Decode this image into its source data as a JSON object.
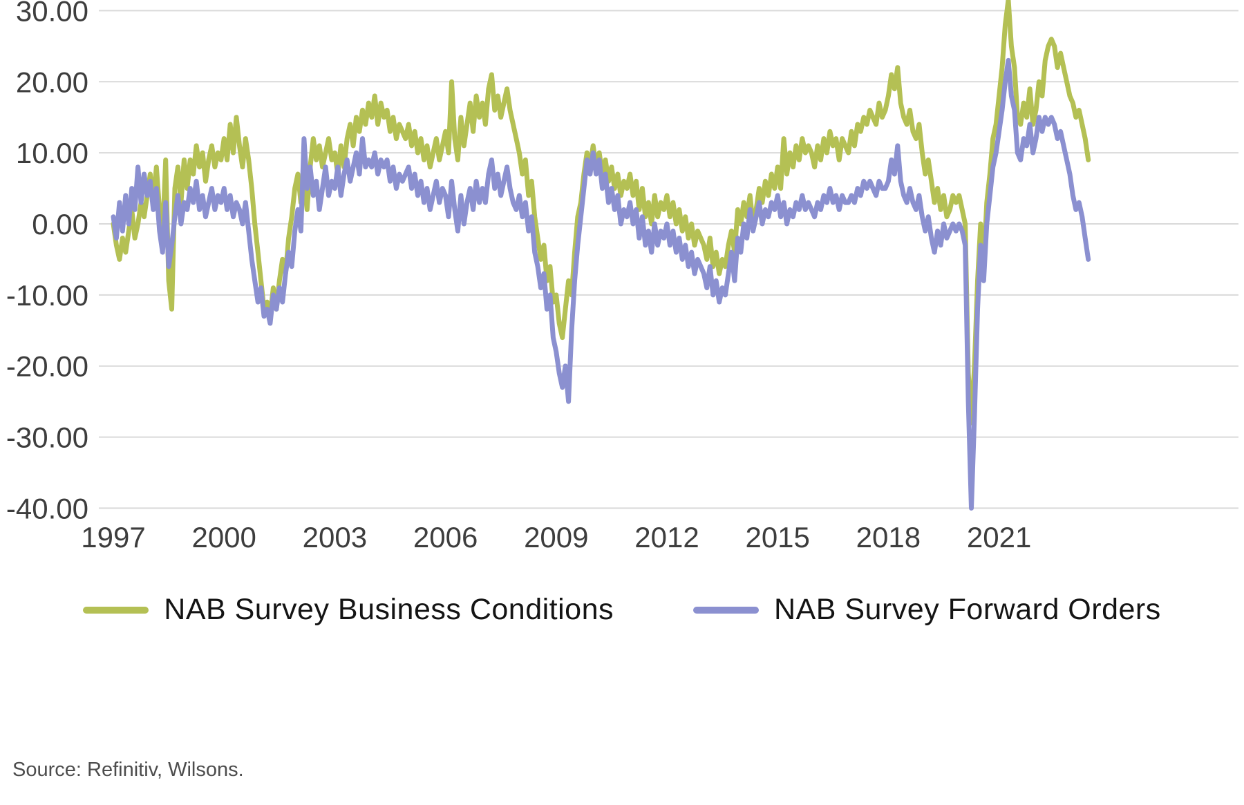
{
  "source_note": "Source: Refinitiv, Wilsons.",
  "colors": {
    "background": "#ffffff",
    "gridline": "#d9d9d9",
    "axis_text": "#3d3d3d",
    "business_conditions": "#b4c054",
    "forward_orders": "#8b90d0"
  },
  "chart_data": {
    "type": "line",
    "title": "",
    "xlabel": "",
    "ylabel": "",
    "grid": "horizontal",
    "legend_position": "bottom",
    "x_start_year": 1997,
    "points_per_year": 12,
    "x_end_approx": 2023.5,
    "xlim": [
      1996.8,
      2023.7
    ],
    "ylim": [
      -40,
      30
    ],
    "y_ticks": [
      30,
      20,
      10,
      0,
      -10,
      -20,
      -30,
      -40
    ],
    "y_tick_labels": [
      "30.00",
      "20.00",
      "10.00",
      "0.00",
      "-10.00",
      "-20.00",
      "-30.00",
      "-40.00"
    ],
    "x_tick_years": [
      1997,
      2000,
      2003,
      2006,
      2009,
      2012,
      2015,
      2018,
      2021
    ],
    "x_tick_labels": [
      "1997",
      "2000",
      "2003",
      "2006",
      "2009",
      "2012",
      "2015",
      "2018",
      "2021"
    ],
    "series": [
      {
        "name": "NAB Survey Business Conditions",
        "color": "#b4c054",
        "values": [
          0,
          -3,
          -5,
          -2,
          -4,
          -1,
          2,
          -2,
          0,
          3,
          1,
          4,
          7,
          3,
          8,
          2,
          -2,
          9,
          -8,
          -12,
          5,
          8,
          3,
          9,
          5,
          9,
          7,
          11,
          8,
          10,
          6,
          9,
          11,
          8,
          10,
          9,
          12,
          9,
          14,
          10,
          15,
          11,
          8,
          12,
          9,
          5,
          0,
          -4,
          -8,
          -12,
          -11,
          -13,
          -9,
          -12,
          -8,
          -5,
          -7,
          -2,
          1,
          5,
          7,
          3,
          6,
          2,
          8,
          12,
          9,
          11,
          8,
          10,
          12,
          9,
          10,
          7,
          11,
          8,
          12,
          14,
          11,
          15,
          13,
          16,
          14,
          17,
          15,
          18,
          14,
          17,
          15,
          16,
          13,
          15,
          12,
          14,
          13,
          12,
          14,
          11,
          13,
          10,
          12,
          9,
          11,
          8,
          10,
          12,
          9,
          11,
          13,
          10,
          20,
          12,
          9,
          15,
          11,
          14,
          17,
          13,
          18,
          15,
          17,
          14,
          19,
          21,
          16,
          18,
          15,
          17,
          19,
          16,
          14,
          12,
          10,
          7,
          9,
          4,
          6,
          1,
          -2,
          -5,
          -3,
          -8,
          -6,
          -11,
          -10,
          -14,
          -16,
          -12,
          -8,
          -10,
          -4,
          1,
          3,
          7,
          10,
          8,
          11,
          8,
          10,
          7,
          9,
          6,
          8,
          5,
          7,
          4,
          6,
          5,
          7,
          4,
          6,
          2,
          5,
          1,
          3,
          0,
          4,
          1,
          3,
          2,
          4,
          1,
          3,
          0,
          2,
          -1,
          1,
          -2,
          0,
          -3,
          -1,
          -2,
          -3,
          -5,
          -2,
          -6,
          -4,
          -7,
          -5,
          -6,
          -3,
          -1,
          -4,
          2,
          0,
          3,
          1,
          4,
          0,
          2,
          5,
          3,
          6,
          4,
          7,
          5,
          8,
          5,
          12,
          7,
          10,
          8,
          11,
          9,
          12,
          10,
          11,
          10,
          8,
          11,
          9,
          12,
          10,
          13,
          11,
          12,
          9,
          12,
          11,
          10,
          13,
          11,
          14,
          13,
          15,
          14,
          16,
          15,
          14,
          17,
          15,
          16,
          18,
          21,
          19,
          22,
          17,
          15,
          14,
          16,
          13,
          12,
          14,
          10,
          7,
          9,
          6,
          3,
          5,
          2,
          4,
          1,
          2,
          4,
          3,
          4,
          2,
          0,
          -21,
          -28,
          -20,
          -8,
          0,
          -6,
          3,
          7,
          12,
          14,
          18,
          22,
          28,
          31.5,
          25,
          22,
          15,
          14,
          17,
          15,
          19,
          14,
          16,
          20,
          18,
          23,
          25,
          26,
          25,
          22,
          24,
          22,
          20,
          18,
          17,
          15,
          16,
          14,
          12,
          9
        ]
      },
      {
        "name": "NAB Survey Forward Orders",
        "color": "#8b90d0",
        "values": [
          1,
          -2,
          3,
          -1,
          4,
          0,
          5,
          2,
          8,
          3,
          7,
          4,
          6,
          2,
          5,
          -1,
          -4,
          3,
          -6,
          -3,
          1,
          4,
          0,
          3,
          2,
          5,
          3,
          6,
          2,
          4,
          1,
          3,
          5,
          2,
          4,
          3,
          5,
          2,
          4,
          1,
          3,
          2,
          0,
          3,
          -1,
          -5,
          -8,
          -11,
          -9,
          -13,
          -12,
          -14,
          -10,
          -12,
          -9,
          -11,
          -7,
          -4,
          -6,
          -1,
          2,
          -1,
          12,
          5,
          8,
          4,
          6,
          2,
          5,
          8,
          4,
          6,
          5,
          8,
          4,
          7,
          9,
          6,
          8,
          10,
          7,
          12,
          8,
          9,
          8,
          10,
          7,
          9,
          8,
          9,
          6,
          8,
          5,
          7,
          6,
          7,
          8,
          5,
          7,
          4,
          6,
          3,
          5,
          2,
          4,
          6,
          3,
          5,
          4,
          1,
          6,
          2,
          -1,
          4,
          0,
          3,
          5,
          2,
          6,
          3,
          5,
          3,
          7,
          9,
          5,
          7,
          4,
          6,
          8,
          5,
          3,
          2,
          4,
          1,
          3,
          -1,
          1,
          -4,
          -6,
          -9,
          -7,
          -12,
          -10,
          -16,
          -18,
          -21,
          -23,
          -20,
          -25,
          -15,
          -8,
          -3,
          1,
          5,
          9,
          7,
          10,
          7,
          9,
          5,
          7,
          3,
          5,
          2,
          4,
          0,
          2,
          1,
          3,
          0,
          2,
          -2,
          1,
          -3,
          -1,
          -4,
          0,
          -3,
          -1,
          -2,
          0,
          -3,
          -1,
          -4,
          -2,
          -5,
          -3,
          -6,
          -4,
          -7,
          -5,
          -6,
          -7,
          -9,
          -6,
          -10,
          -8,
          -11,
          -9,
          -10,
          -7,
          -4,
          -8,
          -2,
          -4,
          0,
          -2,
          2,
          -1,
          1,
          3,
          0,
          2,
          1,
          3,
          2,
          4,
          1,
          3,
          0,
          2,
          1,
          3,
          2,
          4,
          2,
          3,
          2,
          1,
          3,
          2,
          4,
          3,
          5,
          3,
          4,
          2,
          4,
          3,
          3,
          4,
          3,
          5,
          4,
          6,
          5,
          6,
          5,
          4,
          6,
          5,
          5,
          6,
          9,
          7,
          11,
          6,
          4,
          3,
          5,
          3,
          2,
          4,
          1,
          -1,
          1,
          -2,
          -4,
          -1,
          -3,
          0,
          -2,
          -1,
          0,
          -1,
          0,
          -1,
          -3,
          -25,
          -40,
          -27,
          -12,
          -3,
          -8,
          0,
          4,
          8,
          10,
          13,
          16,
          20,
          23,
          18,
          16,
          10,
          9,
          12,
          11,
          14,
          10,
          12,
          15,
          13,
          15,
          14,
          15,
          14,
          12,
          13,
          11,
          9,
          7,
          4,
          2,
          3,
          1,
          -2,
          -5
        ]
      }
    ]
  },
  "legend": {
    "items": [
      {
        "label": "NAB Survey Business Conditions"
      },
      {
        "label": "NAB Survey Forward Orders"
      }
    ]
  }
}
